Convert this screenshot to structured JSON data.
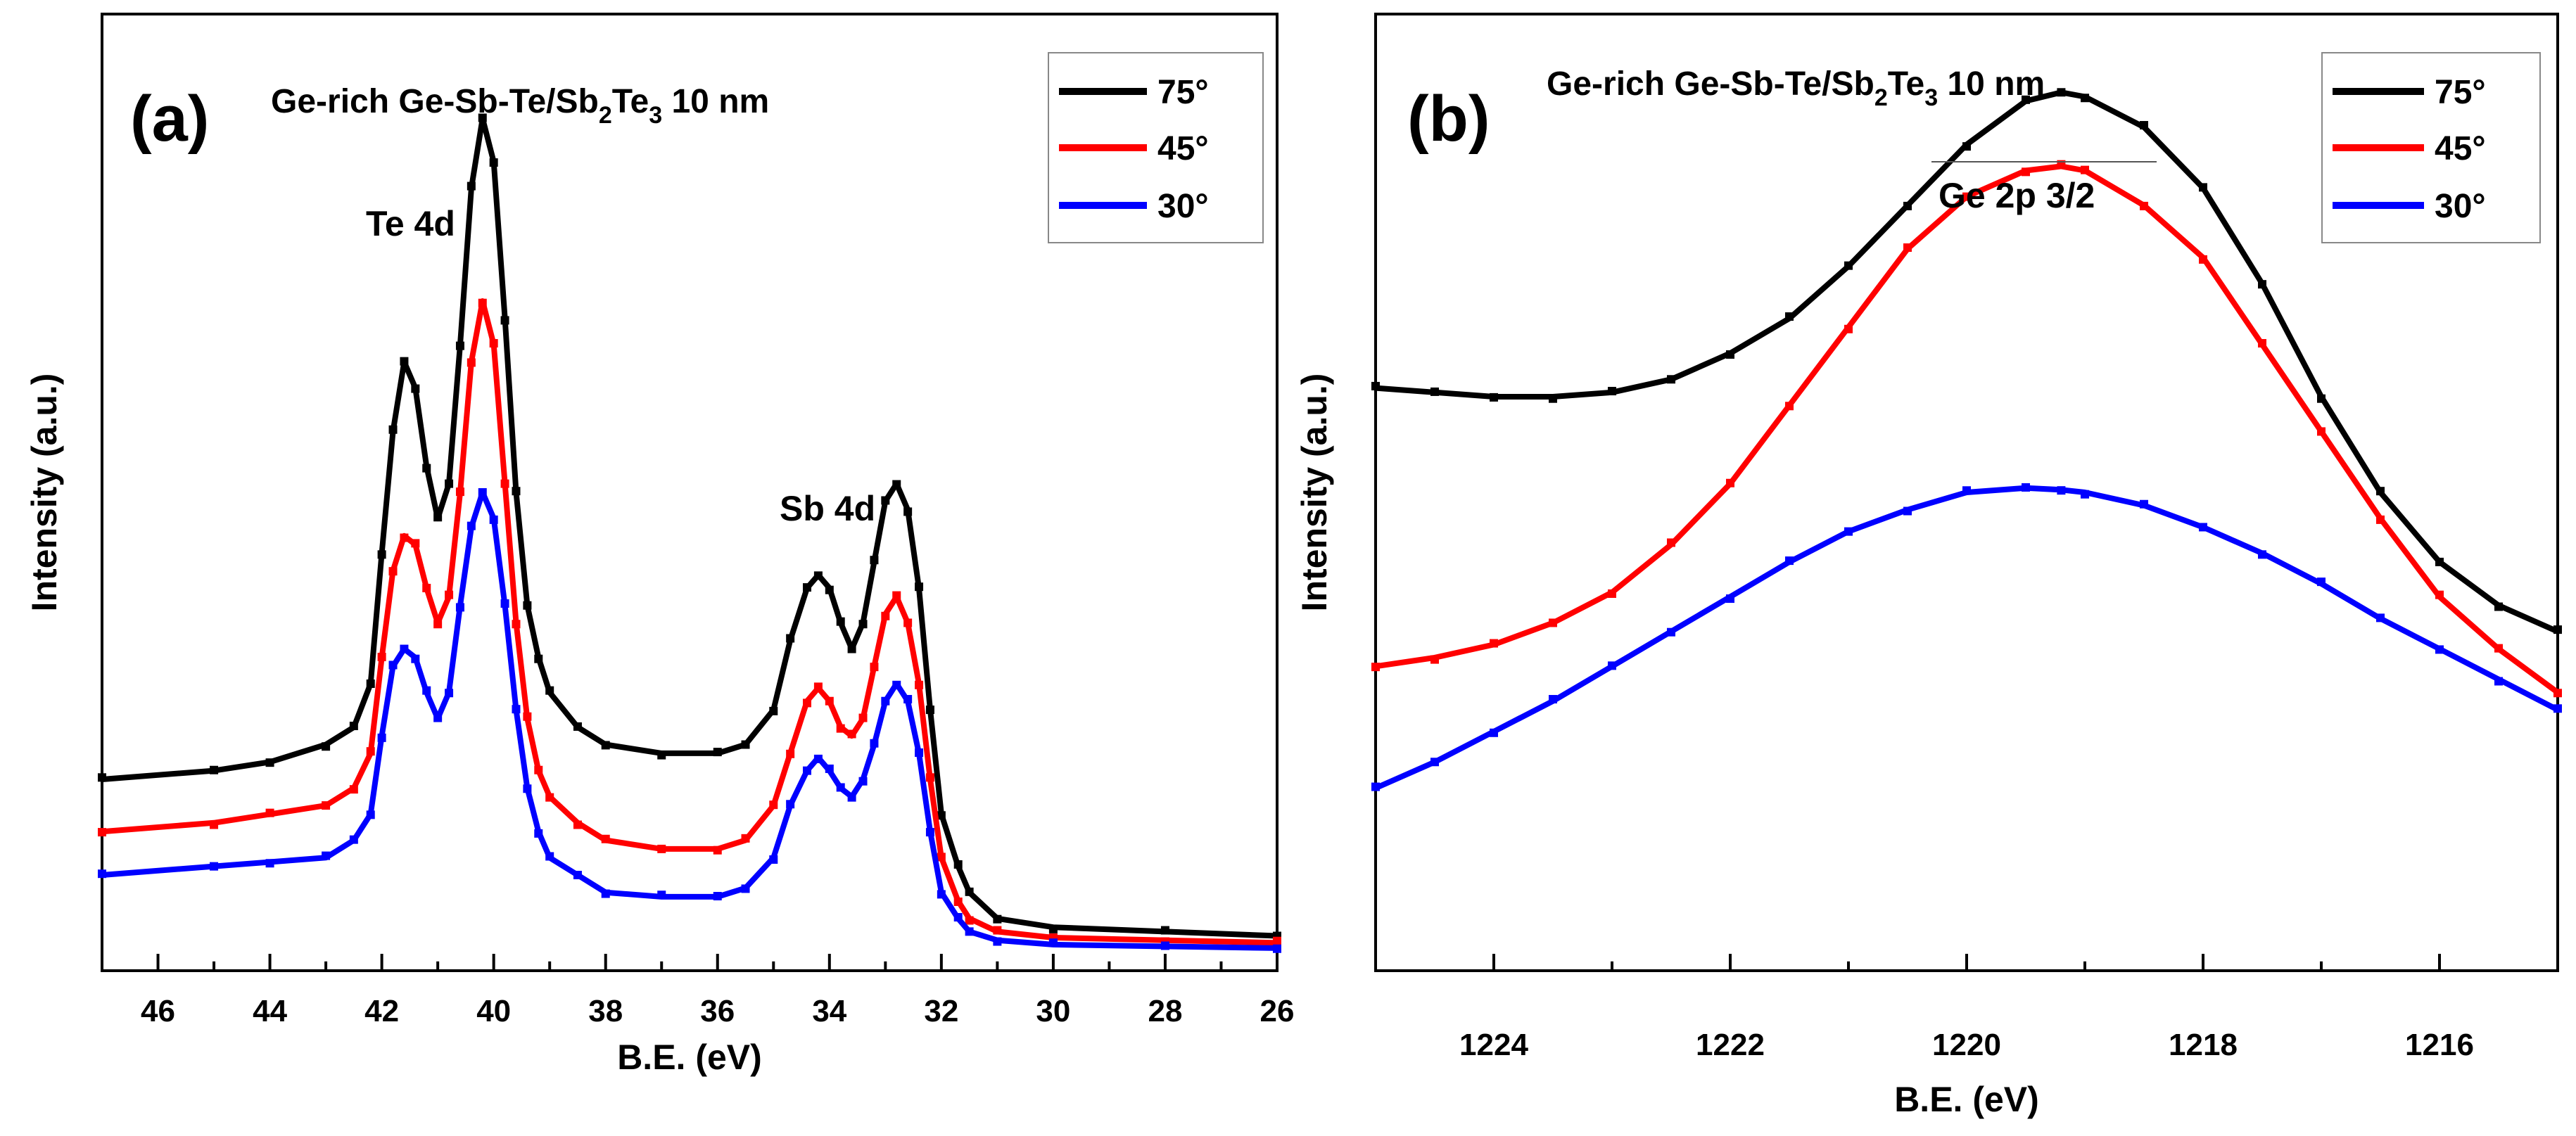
{
  "chart_data": [
    {
      "type": "line",
      "panel_label": "(a)",
      "title_main": "Ge-rich Ge-Sb-Te/Sb",
      "title_sub1": "2",
      "title_mid": "Te",
      "title_sub2": "3",
      "title_tail": " 10 nm",
      "xlabel": "B.E. (eV)",
      "ylabel": "Intensity (a.u.)",
      "xlim": [
        47,
        26
      ],
      "ylim": [
        0,
        110
      ],
      "xticks": [
        46,
        44,
        42,
        40,
        38,
        36,
        34,
        32,
        30,
        28,
        26
      ],
      "annotations": [
        {
          "text": "Te 4d",
          "x": 41.0,
          "y": 104
        },
        {
          "text": "Sb 4d",
          "x": 33.7,
          "y": 63
        }
      ],
      "legend": [
        {
          "label": "75°",
          "color": "#000000"
        },
        {
          "label": "45°",
          "color": "#ff0000"
        },
        {
          "label": "30°",
          "color": "#0000ff"
        }
      ],
      "series": [
        {
          "name": "75°",
          "color": "#000000",
          "x": [
            47,
            45,
            44,
            43,
            42.5,
            42.2,
            42,
            41.8,
            41.6,
            41.4,
            41.2,
            41,
            40.8,
            40.6,
            40.4,
            40.2,
            40,
            39.8,
            39.6,
            39.4,
            39.2,
            39,
            38.5,
            38,
            37,
            36,
            35.5,
            35,
            34.7,
            34.4,
            34.2,
            34,
            33.8,
            33.6,
            33.4,
            33.2,
            33,
            32.8,
            32.6,
            32.4,
            32.2,
            32,
            31.7,
            31.5,
            31,
            30,
            28,
            26
          ],
          "y": [
            22,
            23,
            24,
            26,
            28,
            33,
            48,
            62,
            70,
            67,
            58,
            52,
            56,
            72,
            90,
            98,
            93,
            75,
            55,
            42,
            36,
            32,
            28,
            26,
            25,
            25,
            26,
            30,
            38,
            44,
            45.5,
            44,
            40,
            37,
            40,
            47,
            54,
            56,
            53,
            44,
            30,
            18,
            12,
            9,
            6,
            5,
            4.5,
            4
          ]
        },
        {
          "name": "45°",
          "color": "#ff0000",
          "x": [
            47,
            45,
            44,
            43,
            42.5,
            42.2,
            42,
            41.8,
            41.6,
            41.4,
            41.2,
            41,
            40.8,
            40.6,
            40.4,
            40.2,
            40,
            39.8,
            39.6,
            39.4,
            39.2,
            39,
            38.5,
            38,
            37,
            36,
            35.5,
            35,
            34.7,
            34.4,
            34.2,
            34,
            33.8,
            33.6,
            33.4,
            33.2,
            33,
            32.8,
            32.6,
            32.4,
            32.2,
            32,
            31.7,
            31.5,
            31,
            30,
            28,
            26
          ],
          "y": [
            16,
            17,
            18,
            19,
            21,
            25,
            36,
            46,
            50,
            49,
            44,
            40,
            43,
            55,
            70,
            77,
            72,
            56,
            40,
            29,
            23,
            20,
            17,
            15,
            14,
            14,
            15,
            19,
            25,
            31,
            32.5,
            31,
            28,
            27,
            29,
            35,
            41,
            43,
            40,
            33,
            22,
            13,
            8,
            6,
            4.5,
            3.8,
            3.5,
            3.2
          ]
        },
        {
          "name": "30°",
          "color": "#0000ff",
          "x": [
            47,
            45,
            44,
            43,
            42.5,
            42.2,
            42,
            41.8,
            41.6,
            41.4,
            41.2,
            41,
            40.8,
            40.6,
            40.4,
            40.2,
            40,
            39.8,
            39.6,
            39.4,
            39.2,
            39,
            38.5,
            38,
            37,
            36,
            35.5,
            35,
            34.7,
            34.4,
            34.2,
            34,
            33.8,
            33.6,
            33.4,
            33.2,
            33,
            32.8,
            32.6,
            32.4,
            32.2,
            32,
            31.7,
            31.5,
            31,
            30,
            28,
            26
          ],
          "y": [
            11,
            12,
            12.5,
            13,
            15,
            18,
            27,
            35,
            37,
            36,
            32,
            29,
            32,
            42,
            51,
            55,
            52,
            42,
            30,
            21,
            16,
            13,
            11,
            9,
            8.5,
            8.5,
            9.5,
            13,
            19,
            23,
            24.5,
            23,
            21,
            20,
            22,
            26,
            31,
            33,
            31,
            25,
            16,
            9,
            6,
            4.5,
            3.5,
            3,
            2.8,
            2.6
          ]
        }
      ]
    },
    {
      "type": "line",
      "panel_label": "(b)",
      "title_main": "Ge-rich Ge-Sb-Te/Sb",
      "title_sub1": "2",
      "title_mid": "Te",
      "title_sub2": "3",
      "title_tail": " 10 nm",
      "xlabel": "B.E. (eV)",
      "ylabel": "Intensity (a.u.)",
      "xlim": [
        1225,
        1215
      ],
      "ylim": [
        0,
        110
      ],
      "xticks": [
        1224,
        1222,
        1220,
        1218,
        1216
      ],
      "annotations": [
        {
          "text": "Ge 2p 3/2",
          "x": 1219.9,
          "y": 103
        }
      ],
      "legend": [
        {
          "label": "75°",
          "color": "#000000"
        },
        {
          "label": "45°",
          "color": "#ff0000"
        },
        {
          "label": "30°",
          "color": "#0000ff"
        }
      ],
      "series": [
        {
          "name": "75°",
          "color": "#000000",
          "x": [
            1225,
            1224.5,
            1224,
            1223.5,
            1223,
            1222.5,
            1222,
            1221.5,
            1221,
            1220.5,
            1220,
            1219.5,
            1219.2,
            1219,
            1218.5,
            1218,
            1217.5,
            1217,
            1216.5,
            1216,
            1215.5,
            1215
          ],
          "y": [
            67,
            66.5,
            66,
            66,
            66.5,
            68,
            71,
            75,
            81,
            88,
            95,
            100,
            101,
            100.5,
            97,
            90,
            79,
            66,
            55,
            47,
            42,
            39
          ]
        },
        {
          "name": "45°",
          "color": "#ff0000",
          "x": [
            1225,
            1224.5,
            1224,
            1223.5,
            1223,
            1222.5,
            1222,
            1221.5,
            1221,
            1220.5,
            1220,
            1219.5,
            1219.2,
            1219,
            1218.5,
            1218,
            1217.5,
            1217,
            1216.5,
            1216,
            1215.5,
            1215
          ],
          "y": [
            35,
            36,
            37.5,
            40,
            43.5,
            49,
            56,
            65,
            74,
            83,
            89,
            92,
            92.5,
            92,
            88,
            82,
            72,
            62,
            52,
            43,
            37,
            32
          ]
        },
        {
          "name": "30°",
          "color": "#0000ff",
          "x": [
            1225,
            1224.5,
            1224,
            1223.5,
            1223,
            1222.5,
            1222,
            1221.5,
            1221,
            1220.5,
            1220,
            1219.5,
            1219.2,
            1219,
            1218.5,
            1218,
            1217.5,
            1217,
            1216.5,
            1216,
            1215.5,
            1215
          ],
          "y": [
            21,
            24,
            27.5,
            31,
            35,
            39,
            43,
            47,
            50.5,
            53,
            55,
            55.5,
            55.3,
            55,
            53.5,
            51,
            48,
            44.5,
            40.5,
            37,
            33.5,
            30
          ]
        }
      ]
    }
  ]
}
